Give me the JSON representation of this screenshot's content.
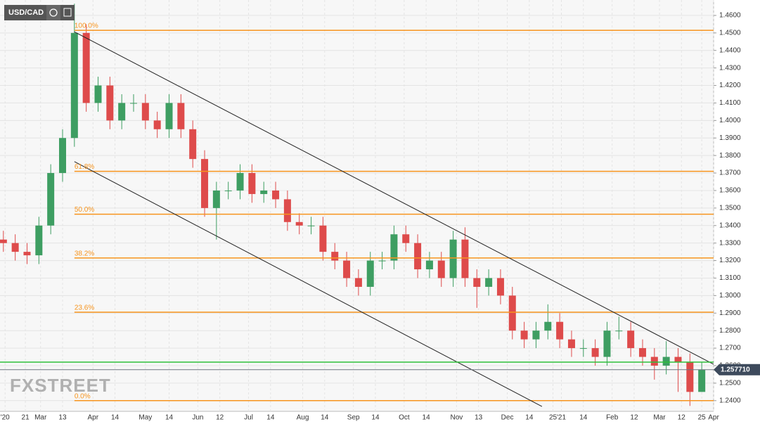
{
  "chart_data": {
    "type": "candlestick",
    "title": "USD/CAD",
    "watermark": "FXSTREET",
    "grid": true,
    "colors": {
      "up": "#3e9e62",
      "down": "#de4b4b",
      "level": "#f7941d",
      "support": "#2fbf3a",
      "trend": "#222222",
      "last": "#6d7480"
    },
    "xlim": [
      36,
      458
    ],
    "ylim": [
      1.2339,
      1.4688
    ],
    "x": [
      38,
      45,
      52,
      59,
      66,
      73,
      80,
      87,
      94,
      101,
      108,
      115,
      122,
      129,
      136,
      143,
      150,
      157,
      164,
      171,
      178,
      185,
      192,
      199,
      206,
      213,
      220,
      227,
      234,
      241,
      248,
      255,
      262,
      269,
      276,
      283,
      290,
      297,
      304,
      311,
      318,
      325,
      332,
      339,
      346,
      353,
      360,
      367,
      374,
      381,
      388,
      395,
      402,
      409,
      416,
      423,
      430,
      437,
      444,
      451
    ],
    "open": [
      1.332,
      1.33,
      1.325,
      1.323,
      1.34,
      1.37,
      1.39,
      1.45,
      1.41,
      1.42,
      1.4,
      1.41,
      1.41,
      1.4,
      1.395,
      1.41,
      1.395,
      1.378,
      1.35,
      1.36,
      1.36,
      1.37,
      1.358,
      1.36,
      1.355,
      1.342,
      1.34,
      1.34,
      1.325,
      1.32,
      1.31,
      1.305,
      1.32,
      1.32,
      1.335,
      1.33,
      1.315,
      1.32,
      1.31,
      1.332,
      1.31,
      1.305,
      1.31,
      1.3,
      1.28,
      1.275,
      1.28,
      1.285,
      1.275,
      1.27,
      1.27,
      1.265,
      1.28,
      1.28,
      1.27,
      1.265,
      1.26,
      1.265,
      1.262,
      1.245
    ],
    "high": [
      1.337,
      1.335,
      1.33,
      1.345,
      1.375,
      1.395,
      1.4667,
      1.455,
      1.425,
      1.425,
      1.415,
      1.415,
      1.415,
      1.405,
      1.415,
      1.415,
      1.4,
      1.383,
      1.365,
      1.365,
      1.375,
      1.375,
      1.365,
      1.365,
      1.36,
      1.347,
      1.345,
      1.345,
      1.33,
      1.325,
      1.315,
      1.325,
      1.325,
      1.34,
      1.34,
      1.335,
      1.325,
      1.325,
      1.337,
      1.339,
      1.315,
      1.315,
      1.315,
      1.305,
      1.285,
      1.285,
      1.295,
      1.29,
      1.28,
      1.275,
      1.275,
      1.285,
      1.288,
      1.285,
      1.275,
      1.27,
      1.274,
      1.27,
      1.267,
      1.262
    ],
    "low": [
      1.325,
      1.32,
      1.318,
      1.318,
      1.335,
      1.365,
      1.385,
      1.405,
      1.405,
      1.395,
      1.395,
      1.405,
      1.395,
      1.39,
      1.39,
      1.39,
      1.373,
      1.345,
      1.332,
      1.355,
      1.355,
      1.353,
      1.353,
      1.35,
      1.337,
      1.335,
      1.335,
      1.32,
      1.315,
      1.305,
      1.3,
      1.3,
      1.315,
      1.315,
      1.325,
      1.31,
      1.31,
      1.305,
      1.305,
      1.305,
      1.293,
      1.3,
      1.295,
      1.275,
      1.27,
      1.27,
      1.275,
      1.27,
      1.265,
      1.265,
      1.26,
      1.26,
      1.275,
      1.265,
      1.26,
      1.252,
      1.255,
      1.245,
      1.237,
      1.245
    ],
    "close": [
      1.33,
      1.325,
      1.323,
      1.34,
      1.37,
      1.39,
      1.45,
      1.41,
      1.42,
      1.4,
      1.41,
      1.41,
      1.4,
      1.395,
      1.41,
      1.395,
      1.378,
      1.35,
      1.36,
      1.36,
      1.37,
      1.358,
      1.36,
      1.355,
      1.342,
      1.34,
      1.34,
      1.325,
      1.32,
      1.31,
      1.305,
      1.32,
      1.32,
      1.335,
      1.33,
      1.315,
      1.32,
      1.31,
      1.332,
      1.31,
      1.305,
      1.31,
      1.3,
      1.28,
      1.275,
      1.28,
      1.285,
      1.275,
      1.27,
      1.27,
      1.265,
      1.28,
      1.28,
      1.27,
      1.265,
      1.26,
      1.265,
      1.262,
      1.245,
      1.2577
    ],
    "yticks": [
      {
        "value": 1.24,
        "label": "1.2400"
      },
      {
        "value": 1.25,
        "label": "1.2500"
      },
      {
        "value": 1.26,
        "label": "1.2600"
      },
      {
        "value": 1.27,
        "label": "1.2700"
      },
      {
        "value": 1.28,
        "label": "1.2800"
      },
      {
        "value": 1.29,
        "label": "1.2900"
      },
      {
        "value": 1.3,
        "label": "1.3000"
      },
      {
        "value": 1.31,
        "label": "1.3100"
      },
      {
        "value": 1.32,
        "label": "1.3200"
      },
      {
        "value": 1.33,
        "label": "1.3300"
      },
      {
        "value": 1.34,
        "label": "1.3400"
      },
      {
        "value": 1.35,
        "label": "1.3500"
      },
      {
        "value": 1.36,
        "label": "1.3600"
      },
      {
        "value": 1.37,
        "label": "1.3700"
      },
      {
        "value": 1.38,
        "label": "1.3800"
      },
      {
        "value": 1.39,
        "label": "1.3900"
      },
      {
        "value": 1.4,
        "label": "1.4000"
      },
      {
        "value": 1.41,
        "label": "1.4100"
      },
      {
        "value": 1.42,
        "label": "1.4200"
      },
      {
        "value": 1.43,
        "label": "1.4300"
      },
      {
        "value": 1.44,
        "label": "1.4400"
      },
      {
        "value": 1.45,
        "label": "1.4500"
      },
      {
        "value": 1.46,
        "label": "1.4600"
      }
    ],
    "xticks": [
      {
        "value": 39,
        "label": "'20"
      },
      {
        "value": 51,
        "label": "21"
      },
      {
        "value": 60,
        "label": "Mar"
      },
      {
        "value": 73,
        "label": "13"
      },
      {
        "value": 91,
        "label": "Apr"
      },
      {
        "value": 104,
        "label": "14"
      },
      {
        "value": 122,
        "label": "May"
      },
      {
        "value": 136,
        "label": "14"
      },
      {
        "value": 153,
        "label": "Jun"
      },
      {
        "value": 166,
        "label": "12"
      },
      {
        "value": 183,
        "label": "Jul"
      },
      {
        "value": 196,
        "label": "14"
      },
      {
        "value": 215,
        "label": "Aug"
      },
      {
        "value": 228,
        "label": "14"
      },
      {
        "value": 245,
        "label": "Sep"
      },
      {
        "value": 258,
        "label": "14"
      },
      {
        "value": 275,
        "label": "Oct"
      },
      {
        "value": 288,
        "label": "14"
      },
      {
        "value": 306,
        "label": "Nov"
      },
      {
        "value": 319,
        "label": "13"
      },
      {
        "value": 336,
        "label": "Dec"
      },
      {
        "value": 349,
        "label": "14"
      },
      {
        "value": 363,
        "label": "25"
      },
      {
        "value": 368,
        "label": "'21"
      },
      {
        "value": 381,
        "label": "14"
      },
      {
        "value": 398,
        "label": "Feb"
      },
      {
        "value": 411,
        "label": "12"
      },
      {
        "value": 426,
        "label": "Mar"
      },
      {
        "value": 439,
        "label": "12"
      },
      {
        "value": 451,
        "label": "25"
      },
      {
        "value": 458,
        "label": "Apr"
      }
    ],
    "levels_start": 80,
    "levels": [
      {
        "value": 1.4515,
        "label": "100.0%"
      },
      {
        "value": 1.371,
        "label": "61.8%"
      },
      {
        "value": 1.3465,
        "label": "50.0%"
      },
      {
        "value": 1.3215,
        "label": "38.2%"
      },
      {
        "value": 1.2905,
        "label": "23.6%"
      },
      {
        "value": 1.24,
        "label": "0.0%"
      }
    ],
    "support": 1.262,
    "last_price": {
      "value": 1.25771,
      "label": "1.257710"
    },
    "trend_lines": [
      {
        "x": [
          80,
          458
        ],
        "y": [
          1.4506,
          1.2608
        ]
      },
      {
        "x": [
          80,
          356.5
        ],
        "y": [
          1.3765,
          1.2367
        ]
      }
    ]
  }
}
